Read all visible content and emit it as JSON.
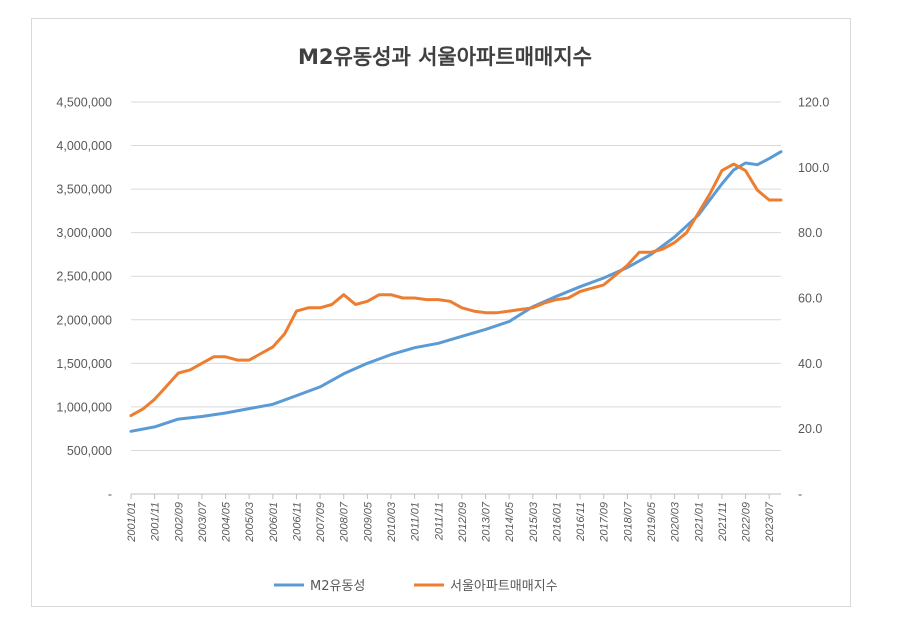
{
  "chart_data": {
    "type": "line",
    "title": "M2유동성과 서울아파트매매지수",
    "legend_position": "bottom",
    "grid": true,
    "colors": {
      "m2": "#5b9bd5",
      "index": "#ed7d31",
      "grid": "#d9d9d9",
      "text": "#595959"
    },
    "x_ticks": [
      "2001/01",
      "2001/11",
      "2002/09",
      "2003/07",
      "2004/05",
      "2005/03",
      "2006/01",
      "2006/11",
      "2007/09",
      "2008/07",
      "2009/05",
      "2010/03",
      "2011/01",
      "2011/11",
      "2012/09",
      "2013/07",
      "2014/05",
      "2015/03",
      "2016/01",
      "2016/11",
      "2017/09",
      "2018/07",
      "2019/05",
      "2020/03",
      "2021/01",
      "2021/11",
      "2022/09",
      "2023/07"
    ],
    "y_left": {
      "min": 0,
      "max": 4500000,
      "step": 500000,
      "tick_labels": [
        "-",
        "500,000",
        "1,000,000",
        "1,500,000",
        "2,000,000",
        "2,500,000",
        "3,000,000",
        "3,500,000",
        "4,000,000",
        "4,500,000"
      ]
    },
    "y_right": {
      "min": 0,
      "max": 120,
      "step": 20,
      "tick_labels": [
        "-",
        "20.0",
        "40.0",
        "60.0",
        "80.0",
        "100.0",
        "120.0"
      ]
    },
    "series": [
      {
        "name": "M2유동성",
        "axis": "left",
        "x": [
          "2001/01",
          "2001/11",
          "2002/09",
          "2003/07",
          "2004/05",
          "2005/03",
          "2006/01",
          "2006/11",
          "2007/09",
          "2008/07",
          "2009/05",
          "2010/03",
          "2011/01",
          "2011/11",
          "2012/09",
          "2013/07",
          "2014/05",
          "2015/03",
          "2016/01",
          "2016/11",
          "2017/09",
          "2018/07",
          "2019/05",
          "2020/03",
          "2021/01",
          "2021/11",
          "2022/04",
          "2022/09",
          "2023/02",
          "2023/07",
          "2023/12"
        ],
        "values": [
          720000,
          770000,
          860000,
          890000,
          930000,
          980000,
          1030000,
          1130000,
          1230000,
          1380000,
          1500000,
          1600000,
          1680000,
          1730000,
          1810000,
          1890000,
          1980000,
          2150000,
          2270000,
          2380000,
          2480000,
          2600000,
          2750000,
          2950000,
          3200000,
          3560000,
          3720000,
          3800000,
          3780000,
          3850000,
          3930000
        ]
      },
      {
        "name": "서울아파트매매지수",
        "axis": "right",
        "x": [
          "2001/01",
          "2001/06",
          "2001/11",
          "2002/04",
          "2002/09",
          "2003/02",
          "2003/07",
          "2003/12",
          "2004/05",
          "2004/10",
          "2005/03",
          "2005/08",
          "2006/01",
          "2006/06",
          "2006/11",
          "2007/04",
          "2007/09",
          "2008/02",
          "2008/07",
          "2008/12",
          "2009/05",
          "2009/10",
          "2010/03",
          "2010/08",
          "2011/01",
          "2011/06",
          "2011/11",
          "2012/04",
          "2012/09",
          "2013/02",
          "2013/07",
          "2013/12",
          "2014/05",
          "2014/10",
          "2015/03",
          "2015/08",
          "2016/01",
          "2016/06",
          "2016/11",
          "2017/04",
          "2017/09",
          "2018/02",
          "2018/07",
          "2018/12",
          "2019/05",
          "2019/10",
          "2020/03",
          "2020/08",
          "2021/01",
          "2021/06",
          "2021/11",
          "2022/04",
          "2022/09",
          "2023/02",
          "2023/07",
          "2023/12"
        ],
        "values": [
          24,
          26,
          29,
          33,
          37,
          38,
          40,
          42,
          42,
          41,
          41,
          43,
          45,
          49,
          56,
          57,
          57,
          58,
          61,
          58,
          59,
          61,
          61,
          60,
          60,
          59.5,
          59.5,
          59,
          57,
          56,
          55.5,
          55.5,
          56,
          56.5,
          57,
          58.5,
          59.5,
          60,
          62,
          63,
          64,
          67,
          70,
          74,
          74,
          75,
          77,
          80,
          86,
          92,
          99,
          101,
          99,
          93,
          90,
          90
        ]
      }
    ]
  }
}
